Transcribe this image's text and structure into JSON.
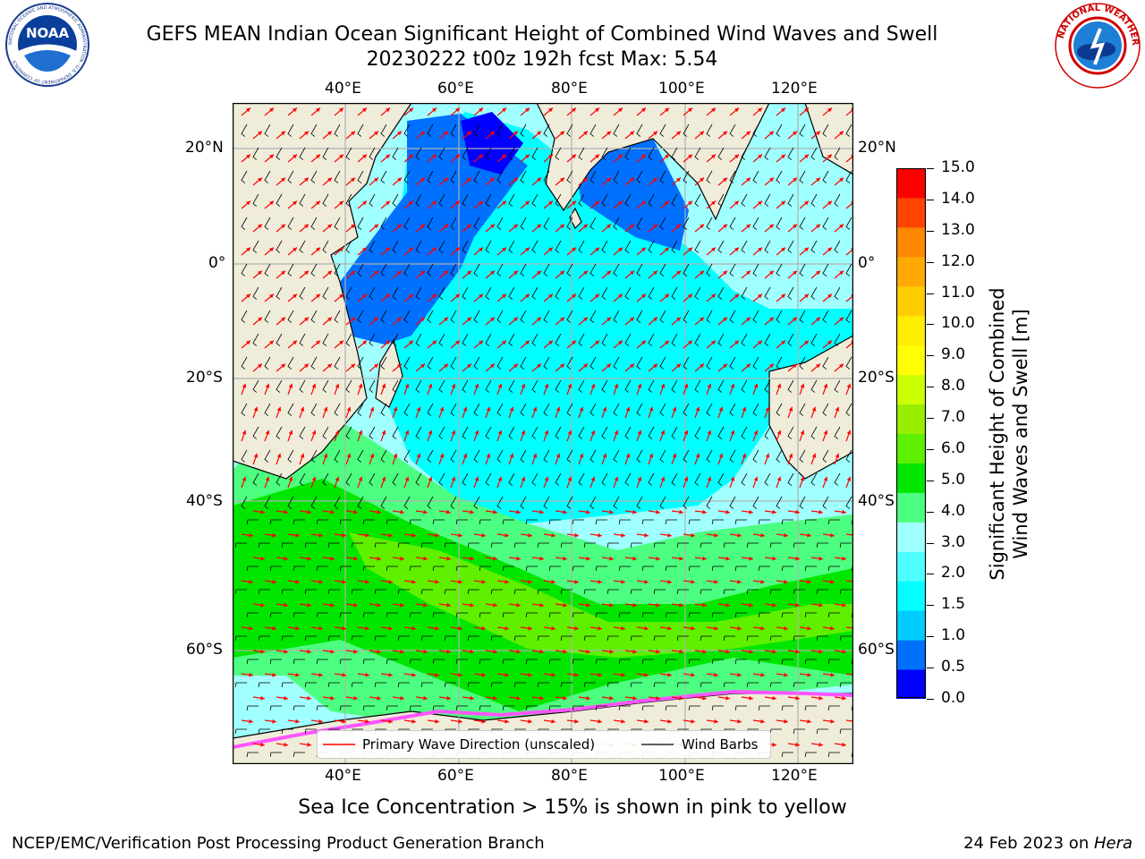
{
  "title": {
    "line1": "GEFS MEAN Indian Ocean Significant Height of Combined Wind Waves and Swell",
    "line2": "20230222 t00z 192h fcst   Max: 5.54"
  },
  "logos": {
    "left_text": "NOAA",
    "left_ring_text": "NATIONAL OCEANIC AND ATMOSPHERIC ADMINISTRATION · U.S. DEPARTMENT OF COMMERCE",
    "right_ring_text": "NATIONAL WEATHER SERVICE"
  },
  "map": {
    "lon_ticks": [
      "40°E",
      "60°E",
      "80°E",
      "100°E",
      "120°E"
    ],
    "lat_ticks_left": [
      "20°N",
      "0°",
      "20°S",
      "40°S",
      "60°S"
    ],
    "lat_ticks_right": [
      "20°N",
      "0°",
      "20°S",
      "40°S",
      "60°S"
    ],
    "colors": {
      "land": "#efedda",
      "coast": "#000000",
      "grid": "#b0b0b0",
      "wave_arrow": "#ff0000",
      "wind_barb": "#000000"
    }
  },
  "colorbar": {
    "label": "Significant Height of Combined\nWind Waves and Swell [m]",
    "ticks": [
      "0.0",
      "0.5",
      "1.0",
      "1.5",
      "2.0",
      "3.0",
      "4.0",
      "5.0",
      "6.0",
      "7.0",
      "8.0",
      "9.0",
      "10.0",
      "11.0",
      "12.0",
      "13.0",
      "14.0",
      "15.0"
    ],
    "colors": [
      "#0000ff",
      "#0070ff",
      "#00ccff",
      "#00ffff",
      "#4dffff",
      "#a0ffff",
      "#4dff80",
      "#00e600",
      "#5ff000",
      "#99ee00",
      "#ccff00",
      "#ffff00",
      "#ffee00",
      "#ffcc00",
      "#ffaa00",
      "#ff8800",
      "#ff4400",
      "#ff0000"
    ]
  },
  "legend": {
    "wave_label": "Primary Wave Direction (unscaled)",
    "wind_label": "Wind Barbs"
  },
  "footer": {
    "note": "Sea Ice Concentration > 15% is shown in pink to yellow",
    "left": "NCEP/EMC/Verification Post Processing Product Generation Branch",
    "right_date": "24 Feb 2023 on ",
    "right_host": "Hera"
  }
}
